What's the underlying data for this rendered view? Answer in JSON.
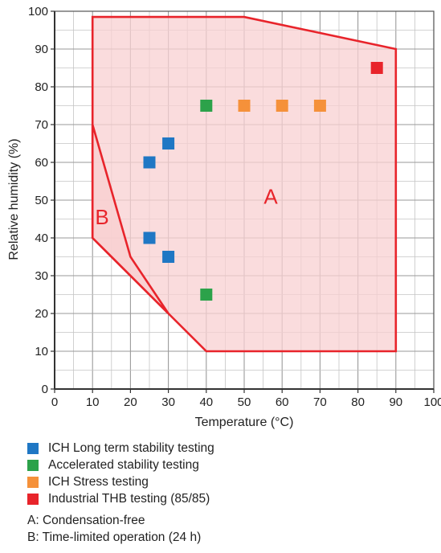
{
  "chart_data": {
    "type": "scatter",
    "xlabel": "Temperature (°C)",
    "ylabel": "Relative humidity (%)",
    "xlim": [
      0,
      100
    ],
    "ylim": [
      0,
      100
    ],
    "x_ticks": [
      0,
      10,
      20,
      30,
      40,
      50,
      60,
      70,
      80,
      90,
      100
    ],
    "y_ticks": [
      0,
      10,
      20,
      30,
      40,
      50,
      60,
      70,
      80,
      90,
      100
    ],
    "grid": true,
    "regions": [
      {
        "label": "A",
        "polygon": [
          [
            10,
            98.5
          ],
          [
            50,
            98.5
          ],
          [
            90,
            90
          ],
          [
            90,
            10
          ],
          [
            40,
            10
          ],
          [
            30,
            20
          ],
          [
            10,
            40
          ]
        ]
      },
      {
        "label": "B",
        "polygon": [
          [
            10,
            70
          ],
          [
            20,
            35
          ],
          [
            30,
            20
          ],
          [
            10,
            40
          ]
        ]
      }
    ],
    "series": [
      {
        "name": "ICH Long term stability testing",
        "color": "#1f77c4",
        "points": [
          [
            25,
            60
          ],
          [
            30,
            65
          ],
          [
            25,
            40
          ],
          [
            30,
            35
          ]
        ]
      },
      {
        "name": "Accelerated stability testing",
        "color": "#2ca24a",
        "points": [
          [
            40,
            75
          ],
          [
            40,
            25
          ]
        ]
      },
      {
        "name": "ICH Stress testing",
        "color": "#f5913a",
        "points": [
          [
            50,
            75
          ],
          [
            60,
            75
          ],
          [
            70,
            75
          ]
        ]
      },
      {
        "name": "Industrial THB testing (85/85)",
        "color": "#e8242b",
        "points": [
          [
            85,
            85
          ]
        ]
      }
    ],
    "region_style": {
      "fill": "#f8d0d1",
      "stroke": "#e8242b"
    },
    "notes": [
      "A: Condensation-free",
      "B: Time-limited operation (24 h)"
    ]
  }
}
